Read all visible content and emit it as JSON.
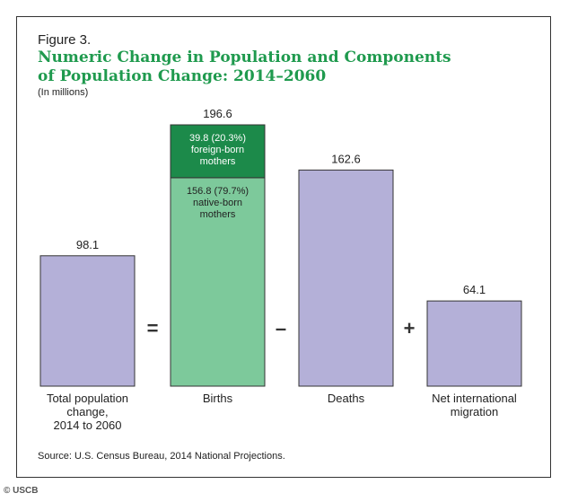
{
  "figure_label": "Figure 3.",
  "title_line1": "Numeric Change in Population and Components",
  "title_line2": "of Population Change: 2014–2060",
  "units": "(In millions)",
  "source": "Source: U.S. Census Bureau, 2014 National Projections.",
  "credit": "© USCB",
  "colors": {
    "lavender": "#b4b0d8",
    "light_green": "#7dc99b",
    "dark_green": "#1c8a4a",
    "title_green": "#1f9a4e"
  },
  "chart_data": {
    "type": "bar",
    "title": "Numeric Change in Population and Components of Population Change: 2014–2060",
    "ylabel": "(In millions)",
    "ylim": [
      0,
      196.6
    ],
    "categories": [
      "Total population change, 2014 to 2060",
      "Births",
      "Deaths",
      "Net international migration"
    ],
    "values": [
      98.1,
      196.6,
      162.6,
      64.1
    ],
    "value_labels": [
      "98.1",
      "196.6",
      "162.6",
      "64.1"
    ],
    "category_labels": [
      [
        "Total population",
        "change,",
        "2014 to 2060"
      ],
      [
        "Births"
      ],
      [
        "Deaths"
      ],
      [
        "Net international",
        "migration"
      ]
    ],
    "operators": [
      "=",
      "–",
      "+"
    ],
    "births_segments": [
      {
        "value": 156.8,
        "label_lines": [
          "156.8 (79.7%)",
          "native-born",
          "mothers"
        ],
        "color": "#7dc99b"
      },
      {
        "value": 39.8,
        "label_lines": [
          "39.8 (20.3%)",
          "foreign-born",
          "mothers"
        ],
        "color": "#1c8a4a"
      }
    ]
  }
}
